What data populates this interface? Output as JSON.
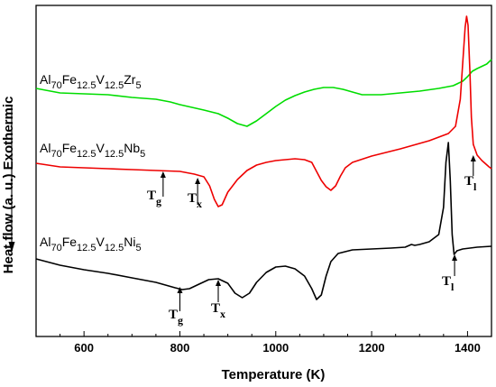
{
  "chart_data": {
    "type": "line",
    "xlabel": "Temperature (K)",
    "ylabel": "Heat flow (a. u.) Exothermic",
    "xlim": [
      500,
      1450
    ],
    "xticks": [
      600,
      800,
      1000,
      1200,
      1400
    ],
    "grid": false,
    "series": [
      {
        "key": "zr",
        "name": "Al70Fe12.5V12.5Zr5",
        "label_parts": [
          [
            "Al",
            ""
          ],
          [
            "70",
            "sub"
          ],
          [
            "Fe",
            ""
          ],
          [
            "12.5",
            "sub"
          ],
          [
            "V",
            ""
          ],
          [
            "12.5",
            "sub"
          ],
          [
            "Zr",
            ""
          ],
          [
            "5",
            "sub"
          ]
        ],
        "color": "#00dd00",
        "points": [
          [
            500,
            98
          ],
          [
            550,
            103
          ],
          [
            600,
            104
          ],
          [
            650,
            105
          ],
          [
            700,
            108
          ],
          [
            750,
            110
          ],
          [
            780,
            113
          ],
          [
            800,
            116
          ],
          [
            850,
            122
          ],
          [
            880,
            126
          ],
          [
            900,
            131
          ],
          [
            920,
            137
          ],
          [
            940,
            140
          ],
          [
            960,
            134
          ],
          [
            980,
            126
          ],
          [
            1000,
            118
          ],
          [
            1020,
            111
          ],
          [
            1040,
            106
          ],
          [
            1060,
            102
          ],
          [
            1080,
            99
          ],
          [
            1100,
            97
          ],
          [
            1120,
            97
          ],
          [
            1140,
            99
          ],
          [
            1160,
            102
          ],
          [
            1180,
            105
          ],
          [
            1200,
            105
          ],
          [
            1220,
            105
          ],
          [
            1260,
            103
          ],
          [
            1300,
            101
          ],
          [
            1340,
            98
          ],
          [
            1370,
            95
          ],
          [
            1390,
            90
          ],
          [
            1400,
            85
          ],
          [
            1410,
            79
          ],
          [
            1420,
            76
          ],
          [
            1440,
            71
          ],
          [
            1450,
            66
          ]
        ]
      },
      {
        "key": "nb",
        "name": "Al70Fe12.5V12.5Nb5",
        "label_parts": [
          [
            "Al",
            ""
          ],
          [
            "70",
            "sub"
          ],
          [
            "Fe",
            ""
          ],
          [
            "12.5",
            "sub"
          ],
          [
            "V",
            ""
          ],
          [
            "12.5",
            "sub"
          ],
          [
            "Nb",
            ""
          ],
          [
            "5",
            "sub"
          ]
        ],
        "color": "#ee0000",
        "points": [
          [
            500,
            181
          ],
          [
            550,
            185
          ],
          [
            600,
            186
          ],
          [
            650,
            187
          ],
          [
            700,
            188
          ],
          [
            750,
            189
          ],
          [
            800,
            190
          ],
          [
            830,
            193
          ],
          [
            850,
            196
          ],
          [
            862,
            206
          ],
          [
            872,
            221
          ],
          [
            880,
            229
          ],
          [
            888,
            227
          ],
          [
            900,
            213
          ],
          [
            920,
            199
          ],
          [
            940,
            189
          ],
          [
            960,
            183
          ],
          [
            980,
            180
          ],
          [
            1000,
            178
          ],
          [
            1020,
            177
          ],
          [
            1040,
            176
          ],
          [
            1060,
            177
          ],
          [
            1075,
            180
          ],
          [
            1085,
            190
          ],
          [
            1095,
            200
          ],
          [
            1105,
            207
          ],
          [
            1115,
            211
          ],
          [
            1125,
            206
          ],
          [
            1135,
            195
          ],
          [
            1145,
            186
          ],
          [
            1160,
            180
          ],
          [
            1200,
            173
          ],
          [
            1260,
            165
          ],
          [
            1320,
            156
          ],
          [
            1360,
            148
          ],
          [
            1375,
            140
          ],
          [
            1385,
            110
          ],
          [
            1390,
            70
          ],
          [
            1395,
            30
          ],
          [
            1398,
            18
          ],
          [
            1401,
            28
          ],
          [
            1405,
            80
          ],
          [
            1408,
            130
          ],
          [
            1412,
            160
          ],
          [
            1420,
            172
          ],
          [
            1430,
            178
          ],
          [
            1445,
            185
          ],
          [
            1450,
            187
          ]
        ]
      },
      {
        "key": "ni",
        "name": "Al70Fe12.5V12.5Ni5",
        "label_parts": [
          [
            "Al",
            ""
          ],
          [
            "70",
            "sub"
          ],
          [
            "Fe",
            ""
          ],
          [
            "12.5",
            "sub"
          ],
          [
            "V",
            ""
          ],
          [
            "12.5",
            "sub"
          ],
          [
            "Ni",
            ""
          ],
          [
            "5",
            "sub"
          ]
        ],
        "color": "#000000",
        "points": [
          [
            500,
            287
          ],
          [
            550,
            294
          ],
          [
            600,
            299
          ],
          [
            650,
            303
          ],
          [
            700,
            308
          ],
          [
            750,
            313
          ],
          [
            790,
            319
          ],
          [
            805,
            321
          ],
          [
            820,
            320
          ],
          [
            840,
            315
          ],
          [
            860,
            310
          ],
          [
            880,
            309
          ],
          [
            900,
            314
          ],
          [
            915,
            325
          ],
          [
            930,
            330
          ],
          [
            945,
            325
          ],
          [
            960,
            313
          ],
          [
            980,
            302
          ],
          [
            1000,
            296
          ],
          [
            1020,
            295
          ],
          [
            1040,
            298
          ],
          [
            1060,
            306
          ],
          [
            1075,
            320
          ],
          [
            1085,
            332
          ],
          [
            1095,
            327
          ],
          [
            1105,
            306
          ],
          [
            1115,
            290
          ],
          [
            1130,
            281
          ],
          [
            1160,
            277
          ],
          [
            1200,
            276
          ],
          [
            1240,
            275
          ],
          [
            1270,
            274
          ],
          [
            1283,
            271
          ],
          [
            1290,
            272
          ],
          [
            1300,
            271
          ],
          [
            1320,
            268
          ],
          [
            1340,
            260
          ],
          [
            1350,
            230
          ],
          [
            1355,
            180
          ],
          [
            1360,
            158
          ],
          [
            1364,
            200
          ],
          [
            1368,
            260
          ],
          [
            1372,
            282
          ],
          [
            1378,
            278
          ],
          [
            1390,
            276
          ],
          [
            1420,
            274
          ],
          [
            1450,
            273
          ]
        ]
      }
    ],
    "annotations": [
      {
        "main": "T",
        "sub": "g",
        "x": 765
      },
      {
        "main": "T",
        "sub": "x",
        "x": 837
      },
      {
        "main": "T",
        "sub": "l",
        "x": 1412
      },
      {
        "main": "T",
        "sub": "g",
        "x": 800
      },
      {
        "main": "T",
        "sub": "x",
        "x": 880
      },
      {
        "main": "T",
        "sub": "l",
        "x": 1373
      }
    ]
  }
}
